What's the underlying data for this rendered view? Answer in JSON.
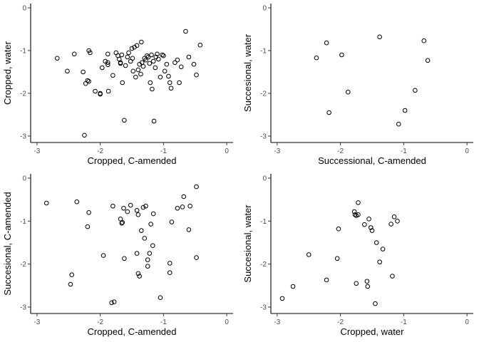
{
  "chart_data": [
    {
      "type": "scatter",
      "xlabel": "Cropped, C-amended",
      "ylabel": "Cropped, water",
      "xlim": [
        -3.1,
        0.1
      ],
      "ylim": [
        -3.15,
        0.1
      ],
      "xticks": [
        -3,
        -2,
        -1,
        0
      ],
      "yticks": [
        -3,
        -2,
        -1,
        0
      ],
      "points": [
        [
          -2.68,
          -1.18
        ],
        [
          -2.52,
          -1.48
        ],
        [
          -2.41,
          -1.08
        ],
        [
          -2.27,
          -1.5
        ],
        [
          -2.23,
          -1.77
        ],
        [
          -2.2,
          -1.7
        ],
        [
          -2.18,
          -1.0
        ],
        [
          -2.16,
          -1.05
        ],
        [
          -2.18,
          -1.72
        ],
        [
          -2.08,
          -1.95
        ],
        [
          -2.0,
          -2.0
        ],
        [
          -2.0,
          -2.02
        ],
        [
          -1.97,
          -1.4
        ],
        [
          -1.92,
          -1.25
        ],
        [
          -1.88,
          -1.33
        ],
        [
          -1.88,
          -1.08
        ],
        [
          -1.87,
          -1.95
        ],
        [
          -1.8,
          -1.58
        ],
        [
          -1.75,
          -1.05
        ],
        [
          -1.72,
          -1.12
        ],
        [
          -1.7,
          -1.2
        ],
        [
          -1.68,
          -1.28
        ],
        [
          -1.66,
          -1.1
        ],
        [
          -1.65,
          -1.75
        ],
        [
          -1.62,
          -2.63
        ],
        [
          -1.6,
          -1.35
        ],
        [
          -1.57,
          -1.15
        ],
        [
          -1.52,
          -1.25
        ],
        [
          -1.5,
          -0.95
        ],
        [
          -1.49,
          -1.18
        ],
        [
          -1.48,
          -1.48
        ],
        [
          -1.46,
          -0.92
        ],
        [
          -1.44,
          -1.62
        ],
        [
          -1.42,
          -0.88
        ],
        [
          -1.4,
          -1.45
        ],
        [
          -1.38,
          -1.32
        ],
        [
          -1.36,
          -1.55
        ],
        [
          -1.34,
          -1.28
        ],
        [
          -1.32,
          -1.37
        ],
        [
          -1.3,
          -1.18
        ],
        [
          -1.28,
          -1.22
        ],
        [
          -1.26,
          -1.12
        ],
        [
          -1.24,
          -1.15
        ],
        [
          -1.22,
          -1.3
        ],
        [
          -1.21,
          -1.75
        ],
        [
          -1.19,
          -1.1
        ],
        [
          -1.18,
          -1.9
        ],
        [
          -1.16,
          -1.25
        ],
        [
          -1.15,
          -2.65
        ],
        [
          -1.13,
          -1.4
        ],
        [
          -1.12,
          -1.15
        ],
        [
          -1.1,
          -1.08
        ],
        [
          -1.08,
          -1.2
        ],
        [
          -1.05,
          -1.62
        ],
        [
          -1.02,
          -1.1
        ],
        [
          -1.0,
          -1.12
        ],
        [
          -0.98,
          -1.48
        ],
        [
          -0.95,
          -1.32
        ],
        [
          -0.92,
          -1.6
        ],
        [
          -0.9,
          -1.75
        ],
        [
          -0.88,
          -1.88
        ],
        [
          -0.82,
          -1.28
        ],
        [
          -0.78,
          -1.22
        ],
        [
          -0.75,
          -1.75
        ],
        [
          -0.72,
          -1.38
        ],
        [
          -0.65,
          -0.55
        ],
        [
          -0.6,
          -1.15
        ],
        [
          -0.52,
          -1.32
        ],
        [
          -0.48,
          -1.57
        ],
        [
          -0.42,
          -0.87
        ],
        [
          -1.35,
          -0.8
        ],
        [
          -1.55,
          -1.05
        ],
        [
          -2.25,
          -2.98
        ],
        [
          -1.68,
          -1.3
        ],
        [
          -1.88,
          -1.28
        ]
      ]
    },
    {
      "type": "scatter",
      "xlabel": "Successional, C-amended",
      "ylabel": "Succesional, water",
      "xlim": [
        -3.1,
        0.1
      ],
      "ylim": [
        -3.15,
        0.1
      ],
      "xticks": [
        -3,
        -2,
        -1,
        0
      ],
      "yticks": [
        -3,
        -2,
        -1,
        0
      ],
      "points": [
        [
          -2.38,
          -1.17
        ],
        [
          -2.22,
          -0.82
        ],
        [
          -2.18,
          -2.45
        ],
        [
          -1.98,
          -1.1
        ],
        [
          -1.88,
          -1.97
        ],
        [
          -1.38,
          -0.68
        ],
        [
          -1.08,
          -2.72
        ],
        [
          -0.98,
          -2.4
        ],
        [
          -0.82,
          -1.93
        ],
        [
          -0.68,
          -0.77
        ],
        [
          -0.62,
          -1.23
        ]
      ]
    },
    {
      "type": "scatter",
      "xlabel": "Cropped, C-amended",
      "ylabel": "Succesional, C-amended",
      "xlim": [
        -3.1,
        0.1
      ],
      "ylim": [
        -3.15,
        0.1
      ],
      "xticks": [
        -3,
        -2,
        -1,
        0
      ],
      "yticks": [
        -3,
        -2,
        -1,
        0
      ],
      "points": [
        [
          -2.85,
          -0.58
        ],
        [
          -2.47,
          -2.47
        ],
        [
          -2.45,
          -2.25
        ],
        [
          -2.37,
          -0.55
        ],
        [
          -2.2,
          -1.13
        ],
        [
          -2.18,
          -0.8
        ],
        [
          -1.95,
          -1.8
        ],
        [
          -1.82,
          -2.9
        ],
        [
          -1.78,
          -2.88
        ],
        [
          -1.8,
          -0.65
        ],
        [
          -1.68,
          -0.95
        ],
        [
          -1.66,
          -1.05
        ],
        [
          -1.65,
          -1.03
        ],
        [
          -1.63,
          -0.7
        ],
        [
          -1.62,
          -1.87
        ],
        [
          -1.57,
          -0.78
        ],
        [
          -1.52,
          -0.63
        ],
        [
          -1.42,
          -1.75
        ],
        [
          -1.42,
          -0.75
        ],
        [
          -1.4,
          -0.85
        ],
        [
          -1.4,
          -2.22
        ],
        [
          -1.38,
          -2.28
        ],
        [
          -1.35,
          -1.22
        ],
        [
          -1.32,
          -0.68
        ],
        [
          -1.3,
          -1.4
        ],
        [
          -1.28,
          -0.65
        ],
        [
          -1.25,
          -2.05
        ],
        [
          -1.25,
          -1.9
        ],
        [
          -1.22,
          -1.75
        ],
        [
          -1.2,
          -1.07
        ],
        [
          -1.17,
          -1.57
        ],
        [
          -1.16,
          -0.83
        ],
        [
          -1.05,
          -2.78
        ],
        [
          -0.9,
          -1.98
        ],
        [
          -0.9,
          -2.2
        ],
        [
          -0.87,
          -1.02
        ],
        [
          -0.78,
          -0.7
        ],
        [
          -0.7,
          -0.67
        ],
        [
          -0.68,
          -0.43
        ],
        [
          -0.6,
          -1.2
        ],
        [
          -0.58,
          -0.65
        ],
        [
          -0.48,
          -0.2
        ],
        [
          -0.48,
          -1.85
        ]
      ]
    },
    {
      "type": "scatter",
      "xlabel": "Cropped, water",
      "ylabel": "Succesional, water",
      "xlim": [
        -3.1,
        0.1
      ],
      "ylim": [
        -3.15,
        0.1
      ],
      "xticks": [
        -3,
        -2,
        -1,
        0
      ],
      "yticks": [
        -3,
        -2,
        -1,
        0
      ],
      "points": [
        [
          -2.92,
          -2.8
        ],
        [
          -2.75,
          -2.52
        ],
        [
          -2.5,
          -1.78
        ],
        [
          -2.22,
          -2.37
        ],
        [
          -2.05,
          -1.87
        ],
        [
          -2.03,
          -1.18
        ],
        [
          -1.78,
          -0.78
        ],
        [
          -1.77,
          -0.85
        ],
        [
          -1.75,
          -0.87
        ],
        [
          -1.72,
          -0.85
        ],
        [
          -1.75,
          -2.45
        ],
        [
          -1.72,
          -0.57
        ],
        [
          -1.62,
          -1.08
        ],
        [
          -1.58,
          -2.4
        ],
        [
          -1.57,
          -2.52
        ],
        [
          -1.55,
          -0.95
        ],
        [
          -1.52,
          -1.15
        ],
        [
          -1.5,
          -1.22
        ],
        [
          -1.45,
          -2.92
        ],
        [
          -1.43,
          -1.5
        ],
        [
          -1.38,
          -1.95
        ],
        [
          -1.33,
          -1.65
        ],
        [
          -1.2,
          -1.07
        ],
        [
          -1.18,
          -2.28
        ],
        [
          -1.15,
          -0.9
        ],
        [
          -1.1,
          -1.0
        ]
      ]
    }
  ]
}
